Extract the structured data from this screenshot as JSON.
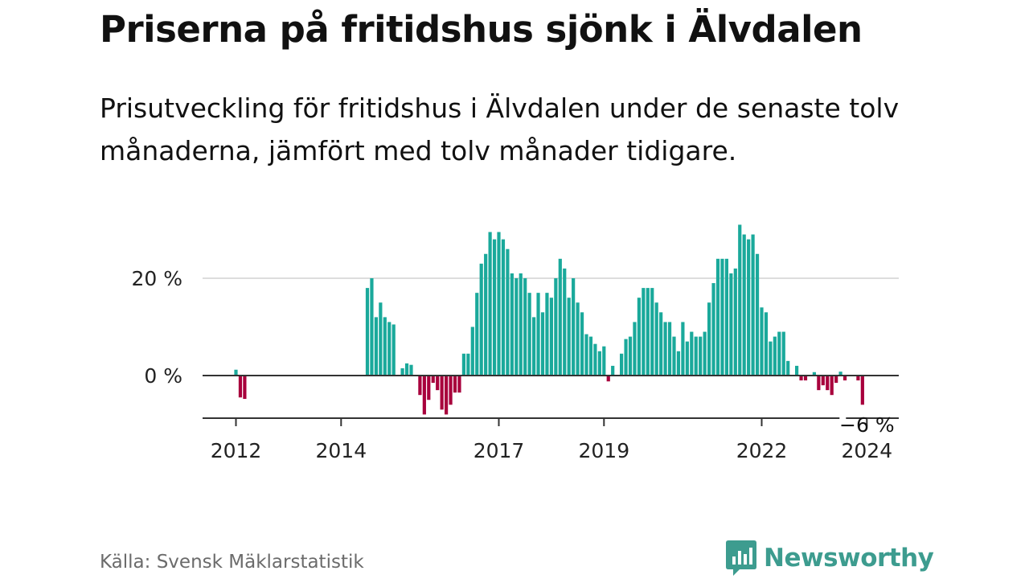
{
  "title": "Priserna på fritidshus sjönk i Älvdalen",
  "subtitle": "Prisutveckling för fritidshus i Älvdalen under de senaste tolv månaderna, jämfört med tolv månader tidigare.",
  "source": "Källa: Svensk Mäklarstatistik",
  "brand": {
    "name": "Newsworthy",
    "icon": "newsworthy-logo-icon"
  },
  "colors": {
    "positive": "#1aa99b",
    "negative": "#a8003c",
    "grid": "#dddddd",
    "axis": "#333333",
    "brand": "#3d9c8f"
  },
  "chart_data": {
    "type": "bar",
    "title": "Priserna på fritidshus sjönk i Älvdalen",
    "xlabel": "",
    "ylabel": "",
    "ylim": [
      -9,
      30
    ],
    "start": "2012-01",
    "y_ticks": [
      {
        "value": 0,
        "label": "0 %"
      },
      {
        "value": 20,
        "label": "20 %"
      }
    ],
    "x_ticks": [
      {
        "label": "2012",
        "month_index": 0
      },
      {
        "label": "2014",
        "month_index": 24
      },
      {
        "label": "2017",
        "month_index": 60
      },
      {
        "label": "2019",
        "month_index": 84
      },
      {
        "label": "2022",
        "month_index": 120
      },
      {
        "label": "2024",
        "month_index": 144
      }
    ],
    "annotation": {
      "label": "−6 %",
      "month_index": 144
    },
    "values": [
      1.2,
      -4.5,
      -4.8,
      null,
      null,
      null,
      null,
      null,
      null,
      null,
      null,
      null,
      null,
      null,
      null,
      null,
      null,
      null,
      null,
      null,
      null,
      null,
      null,
      null,
      null,
      null,
      null,
      null,
      null,
      null,
      18,
      20,
      12,
      15,
      12,
      11,
      10.5,
      null,
      1.5,
      2.5,
      2.2,
      null,
      -4,
      -8,
      -5,
      -1.5,
      -3,
      -7,
      -8,
      -6,
      -3.5,
      -3.5,
      4.5,
      4.5,
      10,
      17,
      23,
      25,
      29.5,
      28,
      29.5,
      28,
      26,
      21,
      20,
      21,
      20,
      17,
      12,
      17,
      13,
      17,
      16,
      20,
      24,
      22,
      16,
      20,
      15,
      13,
      8.5,
      8,
      6.5,
      5,
      6,
      -1.2,
      2,
      null,
      4.5,
      7.5,
      8,
      11,
      16,
      18,
      18,
      18,
      15,
      13,
      11,
      11,
      8,
      5,
      11,
      7,
      9,
      8,
      8,
      9,
      15,
      19,
      24,
      24,
      24,
      21,
      22,
      31,
      29,
      28,
      29,
      25,
      14,
      13,
      7,
      8,
      9,
      9,
      3,
      null,
      2,
      -1,
      -1,
      null,
      0.7,
      -3,
      -2,
      -3,
      -4,
      -1.5,
      0.8,
      -1,
      null,
      null,
      -1,
      -6
    ]
  }
}
